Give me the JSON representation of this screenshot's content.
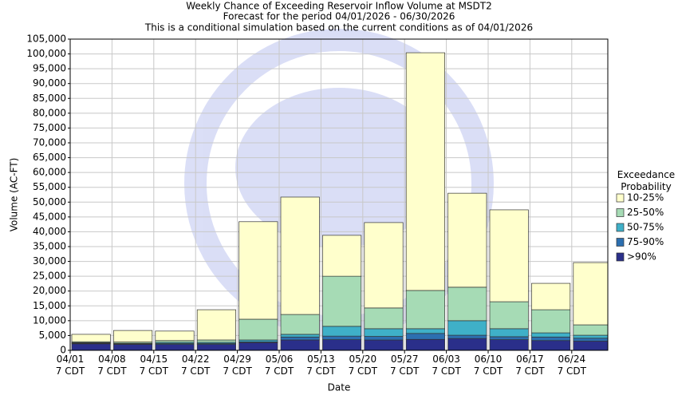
{
  "chart_data": {
    "type": "stacked-bar",
    "title": "Weekly Chance of Exceeding Reservoir Inflow Volume at MSDT2",
    "subtitle": "Forecast for the period 04/01/2026 - 06/30/2026",
    "note": "This is a conditional simulation based on the current conditions as of 04/01/2026",
    "x_label": "Date",
    "y_label": "Volume (AC-FT)",
    "legend_title": "Exceedance\nProbability",
    "legend_position": "right",
    "categories": [
      "04/01\n7 CDT",
      "04/08\n7 CDT",
      "04/15\n7 CDT",
      "04/22\n7 CDT",
      "04/29\n7 CDT",
      "05/06\n7 CDT",
      "05/13\n7 CDT",
      "05/20\n7 CDT",
      "05/27\n7 CDT",
      "06/03\n7 CDT",
      "06/10\n7 CDT",
      "06/17\n7 CDT",
      "06/24\n7 CDT"
    ],
    "series": [
      {
        "name": ">90%",
        "color": "#2a2f8a",
        "values": [
          2200,
          2000,
          2000,
          2000,
          2600,
          3500,
          3600,
          3500,
          3700,
          4000,
          3600,
          3300,
          3100
        ]
      },
      {
        "name": "75-90%",
        "color": "#2c6fb0",
        "values": [
          200,
          200,
          300,
          300,
          300,
          1000,
          1200,
          1200,
          2000,
          1100,
          1000,
          1200,
          1000
        ]
      },
      {
        "name": "50-75%",
        "color": "#3fb0c8",
        "values": [
          200,
          200,
          400,
          400,
          600,
          900,
          3300,
          2600,
          1600,
          4900,
          2700,
          1400,
          1000
        ]
      },
      {
        "name": "25-50%",
        "color": "#a6dbb5",
        "values": [
          300,
          400,
          600,
          800,
          7000,
          6700,
          16900,
          7000,
          12900,
          11300,
          9100,
          7800,
          3500
        ]
      },
      {
        "name": "10-25%",
        "color": "#ffffcc",
        "values": [
          2500,
          3900,
          3200,
          10200,
          32900,
          39600,
          13800,
          28800,
          80200,
          31700,
          31000,
          8900,
          21000
        ]
      }
    ],
    "ylim": [
      0,
      105000
    ],
    "yticks": [
      0,
      {
        "value": 5000,
        "label": "5,000"
      },
      {
        "value": 10000,
        "label": "10,000"
      },
      {
        "value": 15000,
        "label": "15,000"
      },
      {
        "value": 20000,
        "label": "20,000"
      },
      {
        "value": 25000,
        "label": "25,000"
      },
      {
        "value": 30000,
        "label": "30,000"
      },
      {
        "value": 35000,
        "label": "35,000"
      },
      {
        "value": 40000,
        "label": "40,000"
      },
      {
        "value": 45000,
        "label": "45,000"
      },
      {
        "value": 50000,
        "label": "50,000"
      },
      {
        "value": 55000,
        "label": "55,000"
      },
      {
        "value": 60000,
        "label": "60,000"
      },
      {
        "value": 65000,
        "label": "65,000"
      },
      {
        "value": 70000,
        "label": "70,000"
      },
      {
        "value": 75000,
        "label": "75,000"
      },
      {
        "value": 80000,
        "label": "80,000"
      },
      {
        "value": 85000,
        "label": "85,000"
      },
      {
        "value": 90000,
        "label": "90,000"
      },
      {
        "value": 95000,
        "label": "95,000"
      },
      {
        "value": 100000,
        "label": "100,000"
      },
      {
        "value": 105000,
        "label": "105,000"
      }
    ],
    "grid": true
  }
}
